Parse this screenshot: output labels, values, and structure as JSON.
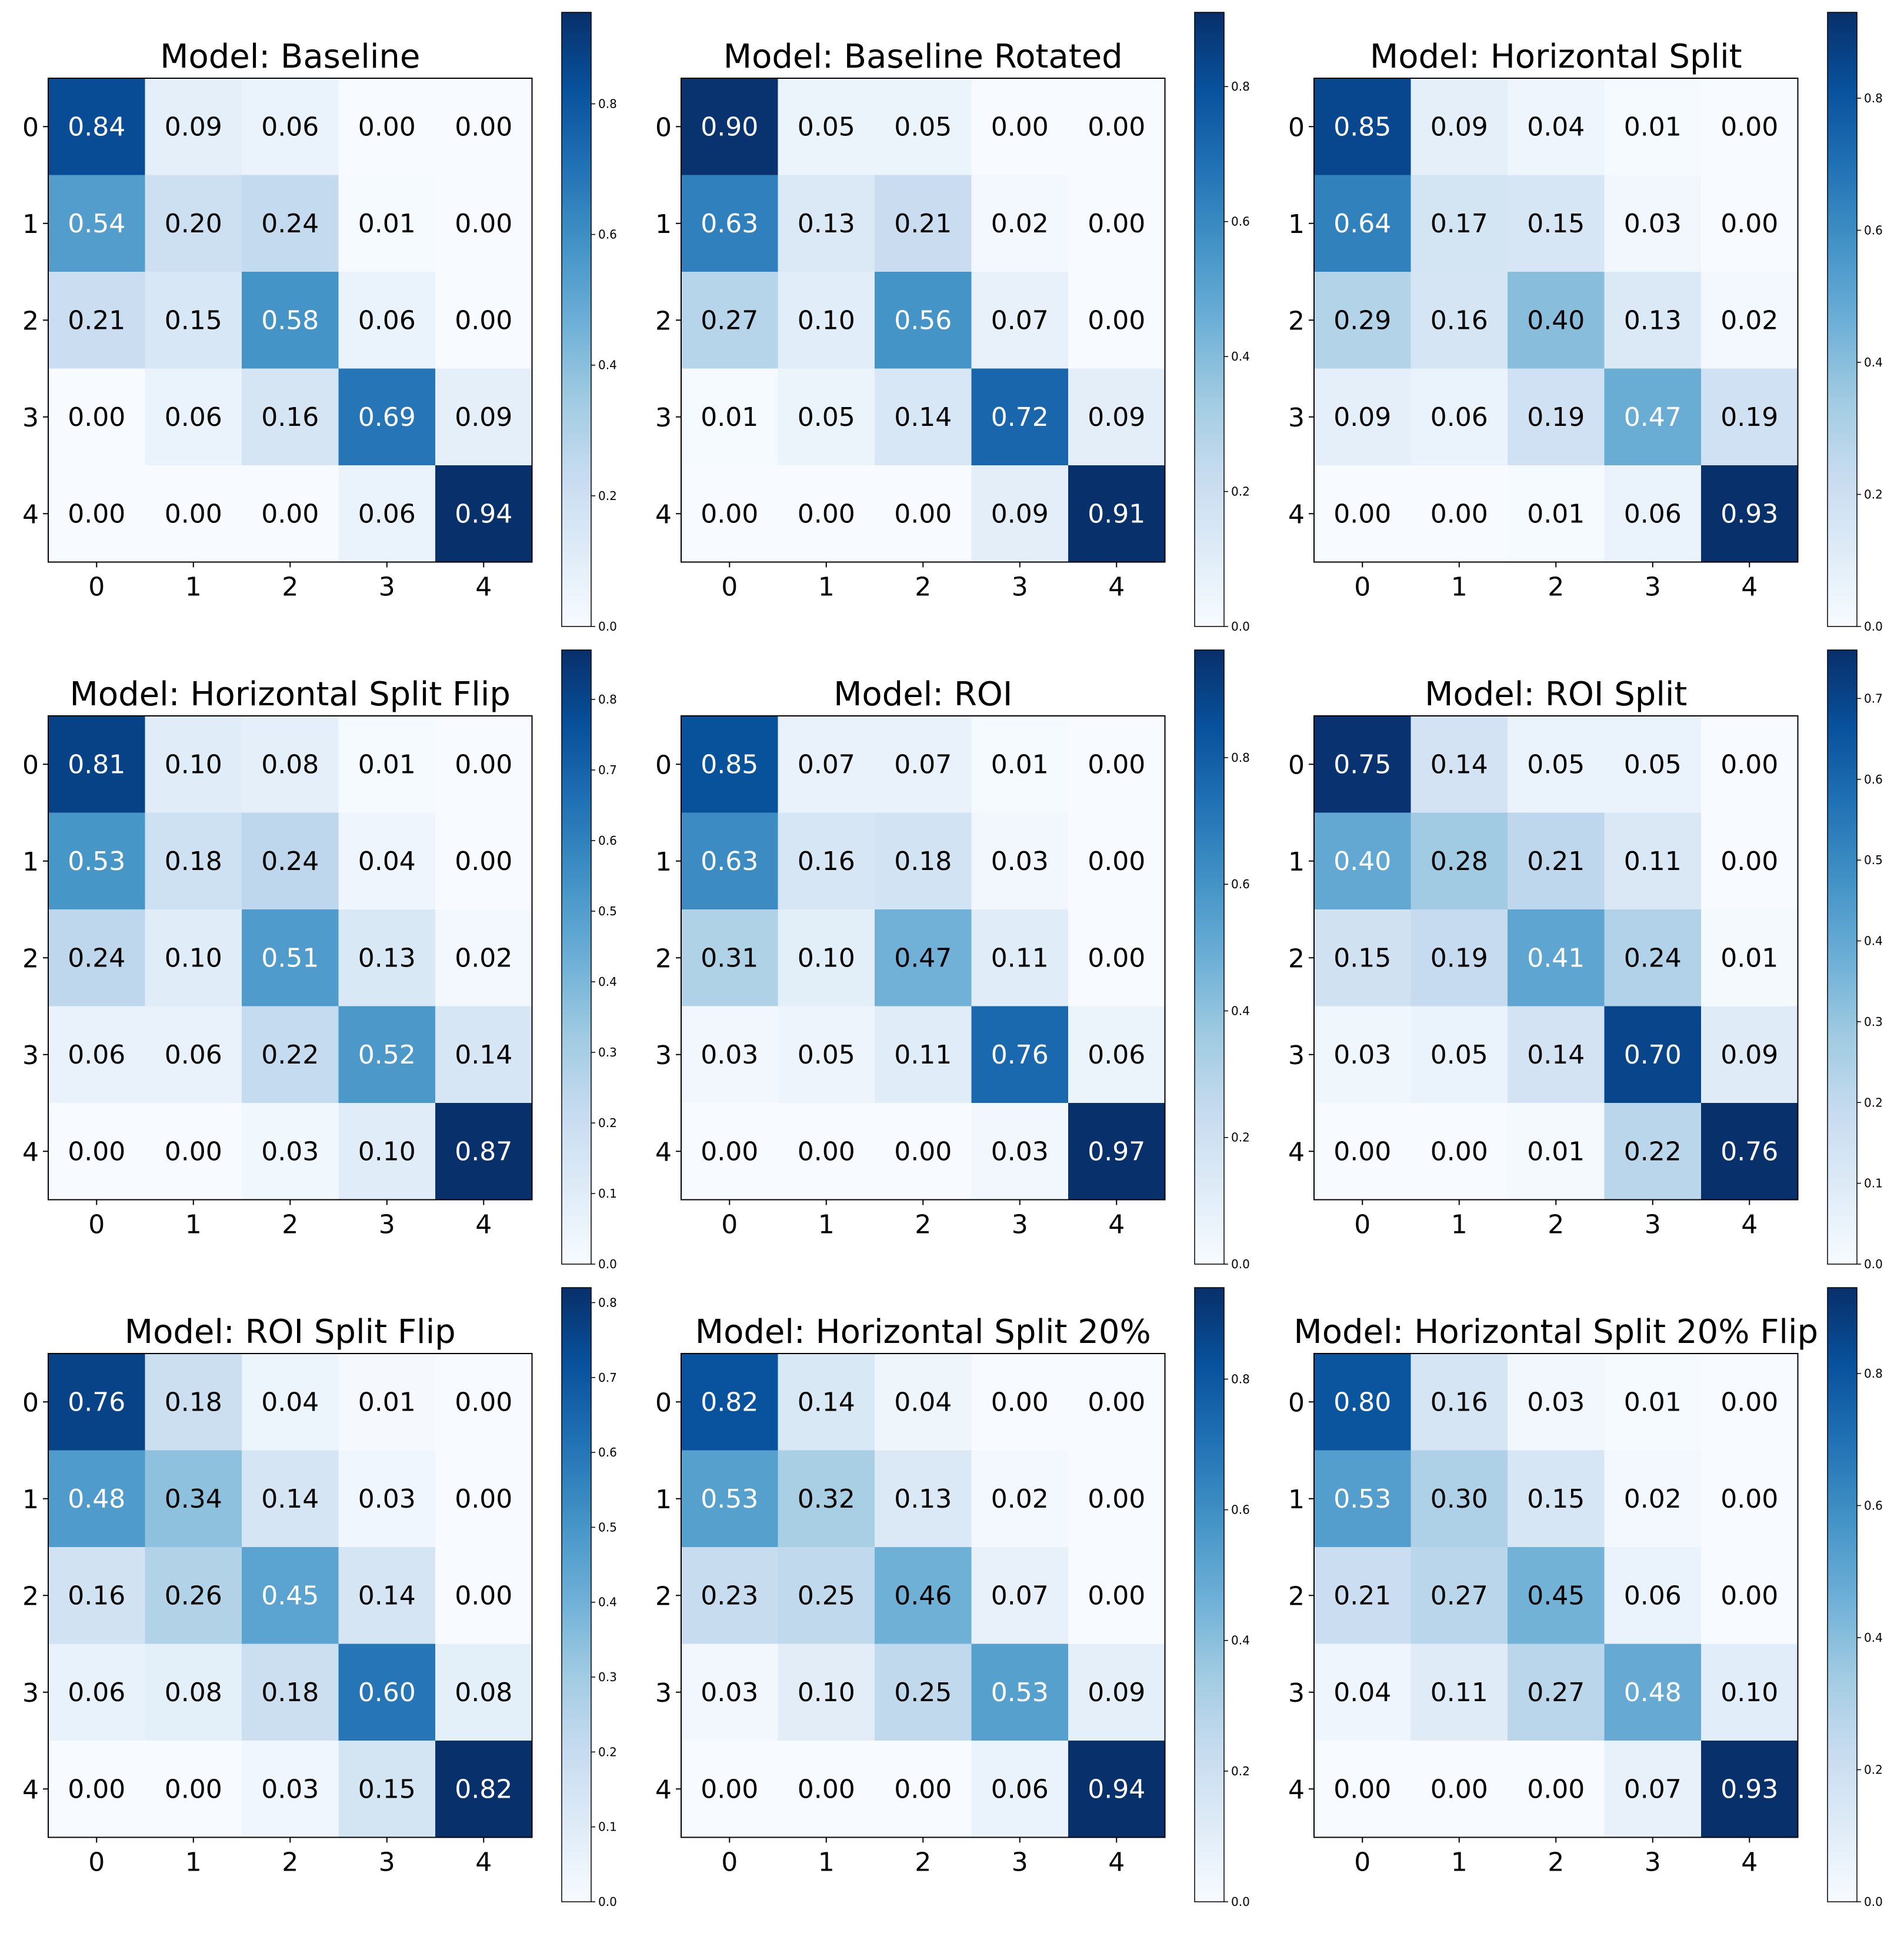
{
  "figure": {
    "rows": 3,
    "cols": 3,
    "colormap": "Blues",
    "colors": {
      "cmap_low": "#f7fbff",
      "cmap_high": "#08306b",
      "text_dark": "#000000",
      "text_light": "#ffffff",
      "frame": "#000000"
    }
  },
  "chart_data": [
    {
      "type": "heatmap",
      "title": "Model: Baseline",
      "x_tick_labels": [
        "0",
        "1",
        "2",
        "3",
        "4"
      ],
      "y_tick_labels": [
        "0",
        "1",
        "2",
        "3",
        "4"
      ],
      "values": [
        [
          0.84,
          0.09,
          0.06,
          0.0,
          0.0
        ],
        [
          0.54,
          0.2,
          0.24,
          0.01,
          0.0
        ],
        [
          0.21,
          0.15,
          0.58,
          0.06,
          0.0
        ],
        [
          0.0,
          0.06,
          0.16,
          0.69,
          0.09
        ],
        [
          0.0,
          0.0,
          0.0,
          0.06,
          0.94
        ]
      ],
      "colorbar": {
        "range": [
          0.0,
          0.94
        ],
        "ticks": [
          "0.0",
          "0.2",
          "0.4",
          "0.6",
          "0.8"
        ]
      }
    },
    {
      "type": "heatmap",
      "title": "Model: Baseline Rotated",
      "x_tick_labels": [
        "0",
        "1",
        "2",
        "3",
        "4"
      ],
      "y_tick_labels": [
        "0",
        "1",
        "2",
        "3",
        "4"
      ],
      "values": [
        [
          0.9,
          0.05,
          0.05,
          0.0,
          0.0
        ],
        [
          0.63,
          0.13,
          0.21,
          0.02,
          0.0
        ],
        [
          0.27,
          0.1,
          0.56,
          0.07,
          0.0
        ],
        [
          0.01,
          0.05,
          0.14,
          0.72,
          0.09
        ],
        [
          0.0,
          0.0,
          0.0,
          0.09,
          0.91
        ]
      ],
      "colorbar": {
        "range": [
          0.0,
          0.91
        ],
        "ticks": [
          "0.0",
          "0.2",
          "0.4",
          "0.6",
          "0.8"
        ]
      }
    },
    {
      "type": "heatmap",
      "title": "Model: Horizontal Split",
      "x_tick_labels": [
        "0",
        "1",
        "2",
        "3",
        "4"
      ],
      "y_tick_labels": [
        "0",
        "1",
        "2",
        "3",
        "4"
      ],
      "values": [
        [
          0.85,
          0.09,
          0.04,
          0.01,
          0.0
        ],
        [
          0.64,
          0.17,
          0.15,
          0.03,
          0.0
        ],
        [
          0.29,
          0.16,
          0.4,
          0.13,
          0.02
        ],
        [
          0.09,
          0.06,
          0.19,
          0.47,
          0.19
        ],
        [
          0.0,
          0.0,
          0.01,
          0.06,
          0.93
        ]
      ],
      "colorbar": {
        "range": [
          0.0,
          0.93
        ],
        "ticks": [
          "0.0",
          "0.2",
          "0.4",
          "0.6",
          "0.8"
        ]
      }
    },
    {
      "type": "heatmap",
      "title": "Model: Horizontal Split Flip",
      "x_tick_labels": [
        "0",
        "1",
        "2",
        "3",
        "4"
      ],
      "y_tick_labels": [
        "0",
        "1",
        "2",
        "3",
        "4"
      ],
      "values": [
        [
          0.81,
          0.1,
          0.08,
          0.01,
          0.0
        ],
        [
          0.53,
          0.18,
          0.24,
          0.04,
          0.0
        ],
        [
          0.24,
          0.1,
          0.51,
          0.13,
          0.02
        ],
        [
          0.06,
          0.06,
          0.22,
          0.52,
          0.14
        ],
        [
          0.0,
          0.0,
          0.03,
          0.1,
          0.87
        ]
      ],
      "colorbar": {
        "range": [
          0.0,
          0.87
        ],
        "ticks": [
          "0.0",
          "0.1",
          "0.2",
          "0.3",
          "0.4",
          "0.5",
          "0.6",
          "0.7",
          "0.8"
        ]
      }
    },
    {
      "type": "heatmap",
      "title": "Model: ROI",
      "x_tick_labels": [
        "0",
        "1",
        "2",
        "3",
        "4"
      ],
      "y_tick_labels": [
        "0",
        "1",
        "2",
        "3",
        "4"
      ],
      "values": [
        [
          0.85,
          0.07,
          0.07,
          0.01,
          0.0
        ],
        [
          0.63,
          0.16,
          0.18,
          0.03,
          0.0
        ],
        [
          0.31,
          0.1,
          0.47,
          0.11,
          0.0
        ],
        [
          0.03,
          0.05,
          0.11,
          0.76,
          0.06
        ],
        [
          0.0,
          0.0,
          0.0,
          0.03,
          0.97
        ]
      ],
      "colorbar": {
        "range": [
          0.0,
          0.97
        ],
        "ticks": [
          "0.0",
          "0.2",
          "0.4",
          "0.6",
          "0.8"
        ]
      }
    },
    {
      "type": "heatmap",
      "title": "Model: ROI Split",
      "x_tick_labels": [
        "0",
        "1",
        "2",
        "3",
        "4"
      ],
      "y_tick_labels": [
        "0",
        "1",
        "2",
        "3",
        "4"
      ],
      "values": [
        [
          0.75,
          0.14,
          0.05,
          0.05,
          0.0
        ],
        [
          0.4,
          0.28,
          0.21,
          0.11,
          0.0
        ],
        [
          0.15,
          0.19,
          0.41,
          0.24,
          0.01
        ],
        [
          0.03,
          0.05,
          0.14,
          0.7,
          0.09
        ],
        [
          0.0,
          0.0,
          0.01,
          0.22,
          0.76
        ]
      ],
      "colorbar": {
        "range": [
          0.0,
          0.76
        ],
        "ticks": [
          "0.0",
          "0.1",
          "0.2",
          "0.3",
          "0.4",
          "0.5",
          "0.6",
          "0.7"
        ]
      }
    },
    {
      "type": "heatmap",
      "title": "Model: ROI Split Flip",
      "x_tick_labels": [
        "0",
        "1",
        "2",
        "3",
        "4"
      ],
      "y_tick_labels": [
        "0",
        "1",
        "2",
        "3",
        "4"
      ],
      "values": [
        [
          0.76,
          0.18,
          0.04,
          0.01,
          0.0
        ],
        [
          0.48,
          0.34,
          0.14,
          0.03,
          0.0
        ],
        [
          0.16,
          0.26,
          0.45,
          0.14,
          0.0
        ],
        [
          0.06,
          0.08,
          0.18,
          0.6,
          0.08
        ],
        [
          0.0,
          0.0,
          0.03,
          0.15,
          0.82
        ]
      ],
      "colorbar": {
        "range": [
          0.0,
          0.82
        ],
        "ticks": [
          "0.0",
          "0.1",
          "0.2",
          "0.3",
          "0.4",
          "0.5",
          "0.6",
          "0.7",
          "0.8"
        ]
      }
    },
    {
      "type": "heatmap",
      "title": "Model: Horizontal Split 20%",
      "x_tick_labels": [
        "0",
        "1",
        "2",
        "3",
        "4"
      ],
      "y_tick_labels": [
        "0",
        "1",
        "2",
        "3",
        "4"
      ],
      "values": [
        [
          0.82,
          0.14,
          0.04,
          0.0,
          0.0
        ],
        [
          0.53,
          0.32,
          0.13,
          0.02,
          0.0
        ],
        [
          0.23,
          0.25,
          0.46,
          0.07,
          0.0
        ],
        [
          0.03,
          0.1,
          0.25,
          0.53,
          0.09
        ],
        [
          0.0,
          0.0,
          0.0,
          0.06,
          0.94
        ]
      ],
      "colorbar": {
        "range": [
          0.0,
          0.94
        ],
        "ticks": [
          "0.0",
          "0.2",
          "0.4",
          "0.6",
          "0.8"
        ]
      }
    },
    {
      "type": "heatmap",
      "title": "Model: Horizontal Split 20% Flip",
      "x_tick_labels": [
        "0",
        "1",
        "2",
        "3",
        "4"
      ],
      "y_tick_labels": [
        "0",
        "1",
        "2",
        "3",
        "4"
      ],
      "values": [
        [
          0.8,
          0.16,
          0.03,
          0.01,
          0.0
        ],
        [
          0.53,
          0.3,
          0.15,
          0.02,
          0.0
        ],
        [
          0.21,
          0.27,
          0.45,
          0.06,
          0.0
        ],
        [
          0.04,
          0.11,
          0.27,
          0.48,
          0.1
        ],
        [
          0.0,
          0.0,
          0.0,
          0.07,
          0.93
        ]
      ],
      "colorbar": {
        "range": [
          0.0,
          0.93
        ],
        "ticks": [
          "0.0",
          "0.2",
          "0.4",
          "0.6",
          "0.8"
        ]
      }
    }
  ]
}
